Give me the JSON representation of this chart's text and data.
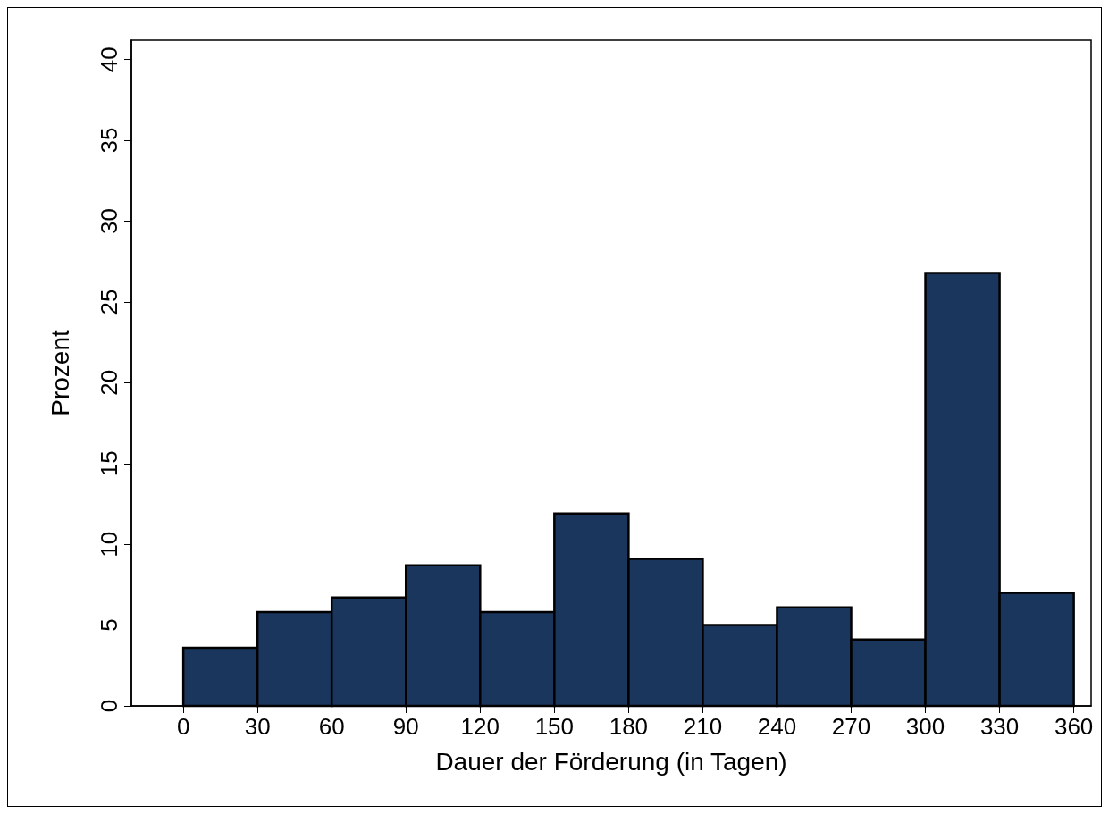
{
  "chart_data": {
    "type": "histogram",
    "xlabel": "Dauer der Förderung (in Tagen)",
    "ylabel": "Prozent",
    "bins": [
      0,
      30,
      60,
      90,
      120,
      150,
      180,
      210,
      240,
      270,
      300,
      330,
      360
    ],
    "values": [
      3.6,
      5.8,
      6.7,
      8.7,
      5.8,
      11.9,
      9.1,
      5.0,
      6.1,
      4.1,
      26.8,
      7.0
    ],
    "color": "#1a365d",
    "xlim": [
      -21,
      367
    ],
    "xticks": [
      0,
      30,
      60,
      90,
      120,
      150,
      180,
      210,
      240,
      270,
      300,
      330,
      360
    ],
    "ylim": [
      0,
      41.2
    ],
    "yticks": [
      0,
      5,
      10,
      15,
      20,
      25,
      30,
      35,
      40
    ],
    "grid": false
  }
}
